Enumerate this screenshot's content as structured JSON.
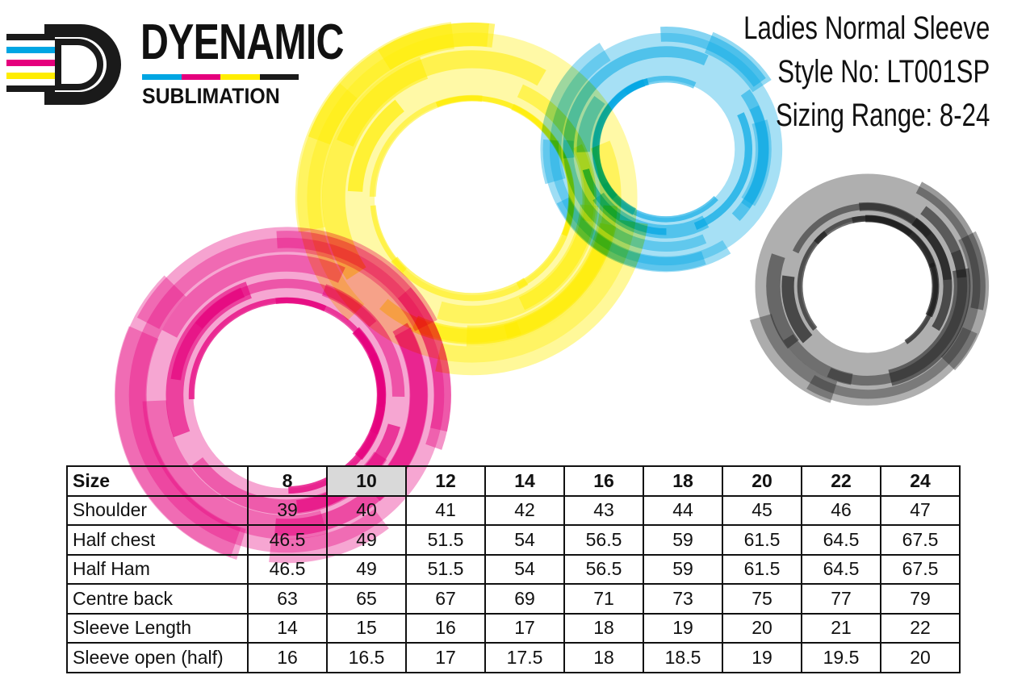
{
  "brand": {
    "name": "DYENAMIC",
    "sub": "SUBLIMATION",
    "bar_colors": [
      "#00a6e3",
      "#e5007d",
      "#ffed00",
      "#1a1a1a"
    ]
  },
  "title_block": {
    "line1": "Ladies Normal Sleeve",
    "line2": "Style No: LT001SP",
    "line3": "Sizing Range: 8-24"
  },
  "decor": {
    "rings": [
      {
        "name": "magenta-ring",
        "color": "#e5007d"
      },
      {
        "name": "yellow-ring",
        "color": "#ffed00"
      },
      {
        "name": "cyan-ring",
        "color": "#00a6e3"
      },
      {
        "name": "black-ring",
        "color": "#1a1a1a"
      }
    ]
  },
  "size_table": {
    "header_label": "Size",
    "sizes": [
      "8",
      "10",
      "12",
      "14",
      "16",
      "18",
      "20",
      "22",
      "24"
    ],
    "highlight_index": 1,
    "highlight_color": "#d9d9d9",
    "rows": [
      {
        "label": "Shoulder",
        "values": [
          "39",
          "40",
          "41",
          "42",
          "43",
          "44",
          "45",
          "46",
          "47"
        ]
      },
      {
        "label": "Half chest",
        "values": [
          "46.5",
          "49",
          "51.5",
          "54",
          "56.5",
          "59",
          "61.5",
          "64.5",
          "67.5"
        ]
      },
      {
        "label": "Half Ham",
        "values": [
          "46.5",
          "49",
          "51.5",
          "54",
          "56.5",
          "59",
          "61.5",
          "64.5",
          "67.5"
        ]
      },
      {
        "label": "Centre back",
        "values": [
          "63",
          "65",
          "67",
          "69",
          "71",
          "73",
          "75",
          "77",
          "79"
        ]
      },
      {
        "label": "Sleeve Length",
        "values": [
          "14",
          "15",
          "16",
          "17",
          "18",
          "19",
          "20",
          "21",
          "22"
        ]
      },
      {
        "label": "Sleeve open (half)",
        "values": [
          "16",
          "16.5",
          "17",
          "17.5",
          "18",
          "18.5",
          "19",
          "19.5",
          "20"
        ]
      }
    ]
  }
}
